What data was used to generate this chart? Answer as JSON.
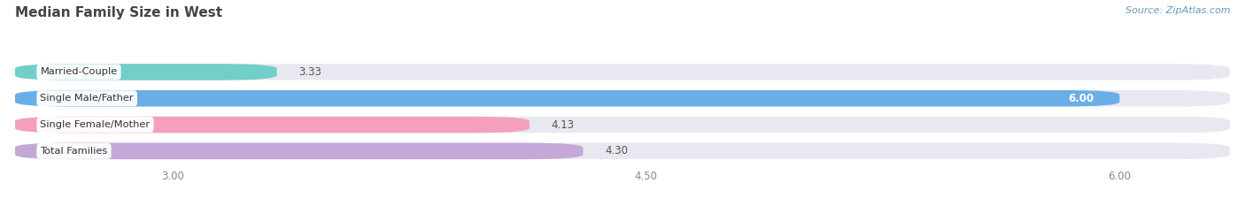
{
  "title": "Median Family Size in West",
  "source": "Source: ZipAtlas.com",
  "categories": [
    "Married-Couple",
    "Single Male/Father",
    "Single Female/Mother",
    "Total Families"
  ],
  "values": [
    3.33,
    6.0,
    4.13,
    4.3
  ],
  "bar_colors": [
    "#72cec9",
    "#6aaee8",
    "#f4a0bc",
    "#c4a8d8"
  ],
  "bar_bg_color": "#e8e8f0",
  "xmin": 2.5,
  "xmax": 6.35,
  "xticks": [
    3.0,
    4.5,
    6.0
  ],
  "value_labels": [
    "3.33",
    "6.00",
    "4.13",
    "4.30"
  ],
  "label_inside": [
    false,
    true,
    false,
    false
  ],
  "background_color": "#ffffff",
  "title_color": "#444444",
  "source_color": "#6699bb"
}
